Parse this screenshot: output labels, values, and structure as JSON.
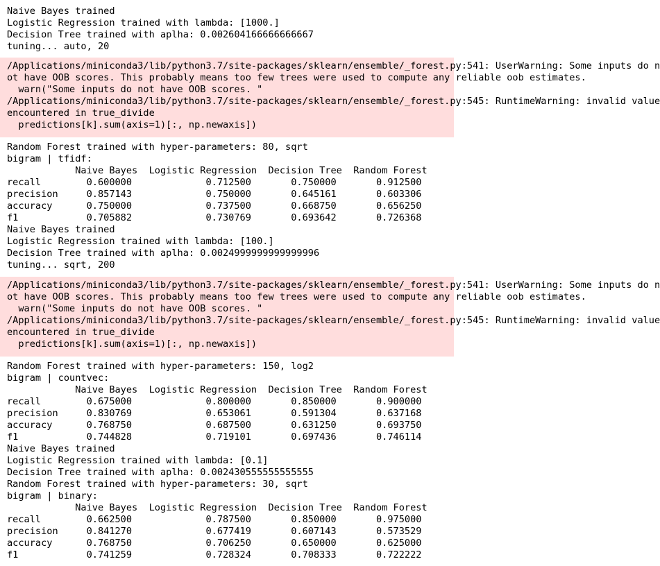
{
  "output": {
    "block1": [
      "Naive Bayes trained",
      "Logistic Regression trained with lambda: [1000.]",
      "Decision Tree trained with aplha: 0.002604166666666667",
      "tuning... auto, 20"
    ],
    "warn1": [
      "/Applications/miniconda3/lib/python3.7/site-packages/sklearn/ensemble/_forest.py:541: UserWarning: Some inputs do n",
      "ot have OOB scores. This probably means too few trees were used to compute any reliable oob estimates.",
      "  warn(\"Some inputs do not have OOB scores. \"",
      "/Applications/miniconda3/lib/python3.7/site-packages/sklearn/ensemble/_forest.py:545: RuntimeWarning: invalid value",
      "encountered in true_divide",
      "  predictions[k].sum(axis=1)[:, np.newaxis])"
    ],
    "block2": [
      "Random Forest trained with hyper-parameters: 80, sqrt",
      "bigram | tfidf:",
      "            Naive Bayes  Logistic Regression  Decision Tree  Random Forest",
      "recall        0.600000             0.712500       0.750000       0.912500",
      "precision     0.857143             0.750000       0.645161       0.603306",
      "accuracy      0.750000             0.737500       0.668750       0.656250",
      "f1            0.705882             0.730769       0.693642       0.726368",
      "Naive Bayes trained",
      "Logistic Regression trained with lambda: [100.]",
      "Decision Tree trained with aplha: 0.0024999999999999996",
      "tuning... sqrt, 200"
    ],
    "warn2": [
      "/Applications/miniconda3/lib/python3.7/site-packages/sklearn/ensemble/_forest.py:541: UserWarning: Some inputs do n",
      "ot have OOB scores. This probably means too few trees were used to compute any reliable oob estimates.",
      "  warn(\"Some inputs do not have OOB scores. \"",
      "/Applications/miniconda3/lib/python3.7/site-packages/sklearn/ensemble/_forest.py:545: RuntimeWarning: invalid value",
      "encountered in true_divide",
      "  predictions[k].sum(axis=1)[:, np.newaxis])"
    ],
    "block3": [
      "Random Forest trained with hyper-parameters: 150, log2",
      "bigram | countvec:",
      "            Naive Bayes  Logistic Regression  Decision Tree  Random Forest",
      "recall        0.675000             0.800000       0.850000       0.900000",
      "precision     0.830769             0.653061       0.591304       0.637168",
      "accuracy      0.768750             0.687500       0.631250       0.693750",
      "f1            0.744828             0.719101       0.697436       0.746114",
      "Naive Bayes trained",
      "Logistic Regression trained with lambda: [0.1]",
      "Decision Tree trained with aplha: 0.002430555555555555",
      "Random Forest trained with hyper-parameters: 30, sqrt",
      "bigram | binary:",
      "            Naive Bayes  Logistic Regression  Decision Tree  Random Forest",
      "recall        0.662500             0.787500       0.850000       0.975000",
      "precision     0.841270             0.677419       0.607143       0.573529",
      "accuracy      0.768750             0.706250       0.650000       0.625000",
      "f1            0.741259             0.728324       0.708333       0.722222"
    ]
  }
}
